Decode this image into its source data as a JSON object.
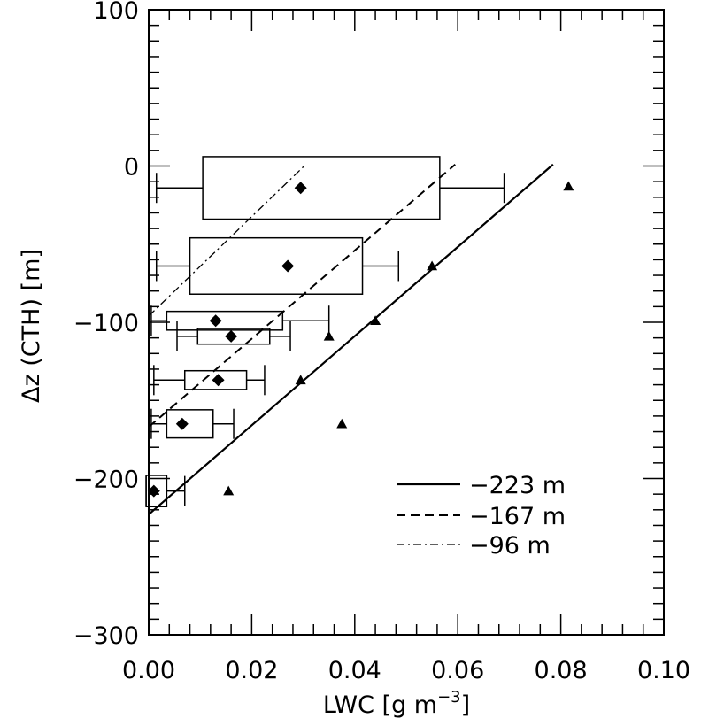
{
  "chart_data": {
    "type": "box",
    "xlabel": "LWC",
    "xlabel_unit": "[g m",
    "xlabel_exp": "−3",
    "xlabel_close": "]",
    "ylabel": "Δz (CTH) [m]",
    "xlim": [
      0.0,
      0.1
    ],
    "ylim": [
      -300,
      100
    ],
    "xticks": [
      0.0,
      0.02,
      0.04,
      0.06,
      0.08,
      0.1
    ],
    "xtick_labels": [
      "0.00",
      "0.02",
      "0.04",
      "0.06",
      "0.08",
      "0.10"
    ],
    "yticks": [
      -300,
      -200,
      -100,
      0,
      100
    ],
    "ytick_labels": [
      "−300",
      "−200",
      "−100",
      "0",
      "100"
    ],
    "box_series": [
      {
        "y": -14,
        "whisker_low": 0.0015,
        "q1": 0.0105,
        "q3": 0.0565,
        "whisker_high": 0.069,
        "mean": 0.0295,
        "box_half": 20
      },
      {
        "y": -64,
        "whisker_low": 0.0015,
        "q1": 0.008,
        "q3": 0.0415,
        "whisker_high": 0.0485,
        "mean": 0.027,
        "box_half": 18
      },
      {
        "y": -99,
        "whisker_low": 0.0005,
        "q1": 0.0035,
        "q3": 0.026,
        "whisker_high": 0.035,
        "mean": 0.013,
        "box_half": 6
      },
      {
        "y": -109,
        "whisker_low": 0.0055,
        "q1": 0.0095,
        "q3": 0.0235,
        "whisker_high": 0.0275,
        "mean": 0.016,
        "box_half": 5
      },
      {
        "y": -137,
        "whisker_low": 0.001,
        "q1": 0.007,
        "q3": 0.019,
        "whisker_high": 0.0225,
        "mean": 0.0135,
        "box_half": 6
      },
      {
        "y": -165,
        "whisker_low": 0.0005,
        "q1": 0.0035,
        "q3": 0.0125,
        "whisker_high": 0.0165,
        "mean": 0.0065,
        "box_half": 9
      },
      {
        "y": -208,
        "whisker_low": -0.0005,
        "q1": -0.0005,
        "q3": 0.0035,
        "whisker_high": 0.007,
        "mean": 0.001,
        "box_half": 10
      }
    ],
    "triangles": [
      {
        "x": 0.0815,
        "y": -13
      },
      {
        "x": 0.055,
        "y": -64
      },
      {
        "x": 0.044,
        "y": -99
      },
      {
        "x": 0.035,
        "y": -109
      },
      {
        "x": 0.0295,
        "y": -137
      },
      {
        "x": 0.0375,
        "y": -165
      },
      {
        "x": 0.0155,
        "y": -208
      }
    ],
    "lines": [
      {
        "name": "−223 m",
        "style": "solid",
        "x": [
          0.0,
          0.0785
        ],
        "y": [
          -223,
          1
        ]
      },
      {
        "name": "−167 m",
        "style": "dashed",
        "x": [
          0.0,
          0.0595
        ],
        "y": [
          -167,
          1
        ]
      },
      {
        "name": "−96 m",
        "style": "dashdot",
        "x": [
          0.0,
          0.0305
        ],
        "y": [
          -96,
          1
        ]
      }
    ],
    "legend_position": "lower-right",
    "grid": false
  }
}
